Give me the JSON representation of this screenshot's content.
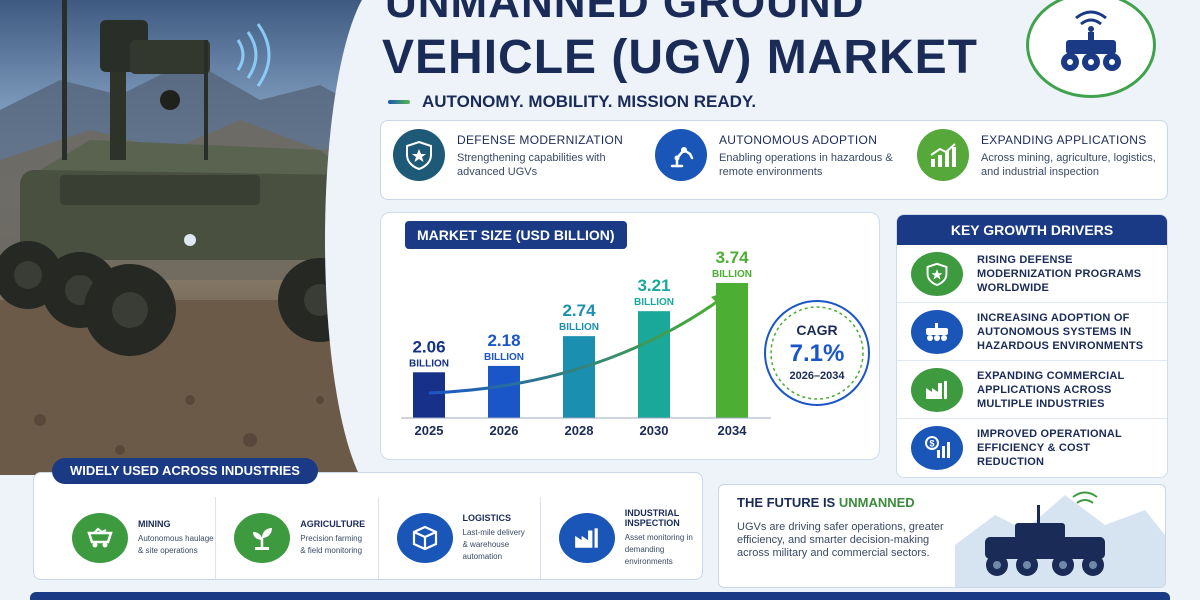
{
  "header": {
    "title_line1": "UNMANNED GROUND",
    "title_line2": "VEHICLE (UGV) MARKET",
    "tagline": "AUTONOMY. MOBILITY. MISSION READY."
  },
  "icons": {
    "logo": "ugv-wifi-icon"
  },
  "colors": {
    "navy": "#1a3a86",
    "blue": "#1a56b8",
    "teal": "#1aa0a8",
    "green": "#56b84a"
  },
  "features": [
    {
      "title": "DEFENSE MODERNIZATION",
      "desc": "Strengthening capabilities with advanced UGVs",
      "icon": "shield-star-icon"
    },
    {
      "title": "AUTONOMOUS ADOPTION",
      "desc": "Enabling operations in hazardous & remote environments",
      "icon": "robot-arm-icon"
    },
    {
      "title": "EXPANDING APPLICATIONS",
      "desc": "Across mining, agriculture, logistics, and industrial inspection",
      "icon": "growth-chart-icon"
    }
  ],
  "market": {
    "heading": "MARKET SIZE (USD BILLION)",
    "cagr_label": "CAGR",
    "cagr_value": "7.1%",
    "cagr_range": "2026–2034"
  },
  "chart_data": {
    "type": "bar",
    "categories": [
      "2025",
      "2026",
      "2028",
      "2030",
      "2034"
    ],
    "values": [
      2.06,
      2.18,
      2.74,
      3.21,
      3.74
    ],
    "value_labels": [
      "2.06",
      "2.18",
      "2.74",
      "3.21",
      "3.74"
    ],
    "unit_label": "BILLION",
    "title": "MARKET SIZE (USD BILLION)",
    "xlabel": "",
    "ylabel": ""
  },
  "drivers": {
    "heading": "KEY GROWTH DRIVERS",
    "items": [
      {
        "label": "RISING DEFENSE MODERNIZATION PROGRAMS WORLDWIDE",
        "icon": "shield-star-icon"
      },
      {
        "label": "INCREASING ADOPTION OF AUTONOMOUS SYSTEMS IN HAZARDOUS ENVIRONMENTS",
        "icon": "robot-vehicle-icon"
      },
      {
        "label": "EXPANDING COMMERCIAL APPLICATIONS ACROSS MULTIPLE INDUSTRIES",
        "icon": "factory-icon"
      },
      {
        "label": "IMPROVED OPERATIONAL EFFICIENCY & COST REDUCTION",
        "icon": "dollar-chart-icon"
      }
    ]
  },
  "industries": {
    "heading": "WIDELY USED ACROSS INDUSTRIES",
    "items": [
      {
        "name": "MINING",
        "line1": "Autonomous haulage",
        "line2": "& site operations",
        "icon": "mining-cart-icon"
      },
      {
        "name": "AGRICULTURE",
        "line1": "Precision farming",
        "line2": "& field monitoring",
        "icon": "plant-icon"
      },
      {
        "name": "LOGISTICS",
        "line1": "Last-mile delivery",
        "line2": "& warehouse automation",
        "icon": "box-icon"
      },
      {
        "name": "INDUSTRIAL INSPECTION",
        "line1": "Asset monitoring in",
        "line2": "demanding environments",
        "icon": "factory-icon"
      }
    ]
  },
  "future": {
    "heading_a": "THE FUTURE IS",
    "heading_b": "UNMANNED",
    "body": "UGVs are driving safer operations, greater efficiency, and smarter decision-making across military and commercial sectors."
  }
}
